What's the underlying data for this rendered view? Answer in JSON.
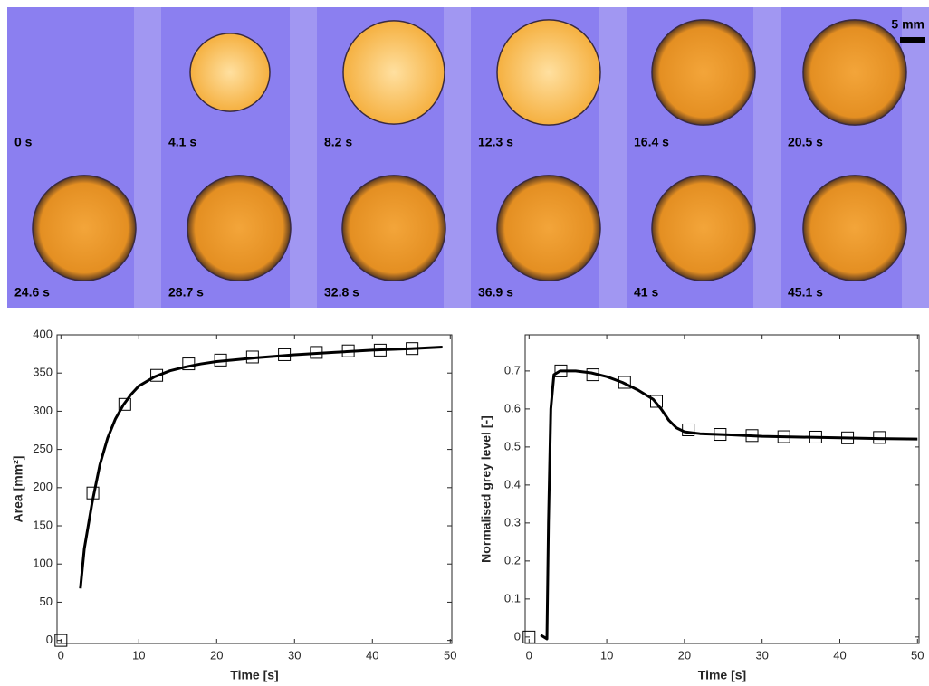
{
  "panels": {
    "labels": [
      "0 s",
      "4.1 s",
      "8.2 s",
      "12.3 s",
      "16.4 s",
      "20.5 s",
      "24.6 s",
      "28.7 s",
      "32.8 s",
      "36.9 s",
      "41 s",
      "45.1 s"
    ],
    "scale_bar": "5 mm"
  },
  "chart_data": [
    {
      "type": "line",
      "xlabel": "Time [s]",
      "ylabel": "Area [mm²]",
      "xlim": [
        -0.5,
        50.2
      ],
      "xticks": [
        0,
        10,
        20,
        30,
        40,
        50
      ],
      "ylim": [
        -4,
        400
      ],
      "yticks": [
        0,
        50,
        100,
        150,
        200,
        250,
        300,
        350,
        400
      ],
      "series": [
        {
          "color": "#000000",
          "marker": "none",
          "x": [
            2.5,
            3,
            4,
            5,
            6,
            7,
            8,
            9,
            10,
            12,
            14,
            16,
            18,
            20,
            25,
            30,
            35,
            40,
            45,
            49
          ],
          "values": [
            68,
            120,
            180,
            230,
            265,
            290,
            308,
            322,
            333,
            345,
            353,
            358,
            362,
            365,
            370,
            374,
            377,
            380,
            382,
            384
          ]
        },
        {
          "color": "#000000",
          "marker": "square",
          "x": [
            0,
            4.1,
            8.2,
            12.3,
            16.4,
            20.5,
            24.6,
            28.7,
            32.8,
            36.9,
            41,
            45.1
          ],
          "values": [
            0,
            193,
            309,
            347,
            362,
            367,
            371,
            374,
            377,
            379,
            380,
            382
          ]
        }
      ]
    },
    {
      "type": "line",
      "xlabel": "Time [s]",
      "ylabel": "Normalised grey level [-]",
      "xlim": [
        -0.5,
        50.2
      ],
      "xticks": [
        0,
        10,
        20,
        30,
        40,
        50
      ],
      "ylim": [
        -0.017,
        0.795
      ],
      "yticks": [
        0,
        0.1,
        0.2,
        0.3,
        0.4,
        0.5,
        0.6,
        0.7
      ],
      "series": [
        {
          "color": "#000000",
          "marker": "none",
          "x": [
            1.5,
            2.3,
            2.5,
            2.8,
            3.2,
            4,
            6,
            8,
            10,
            12,
            14,
            16,
            17,
            18,
            19,
            20,
            22,
            26,
            30,
            35,
            40,
            45,
            50
          ],
          "values": [
            0.005,
            -0.005,
            0.3,
            0.6,
            0.69,
            0.7,
            0.7,
            0.695,
            0.685,
            0.67,
            0.65,
            0.625,
            0.6,
            0.57,
            0.55,
            0.54,
            0.535,
            0.532,
            0.528,
            0.526,
            0.524,
            0.522,
            0.521
          ]
        },
        {
          "color": "#000000",
          "marker": "square",
          "x": [
            0,
            4.1,
            8.2,
            12.3,
            16.4,
            20.5,
            24.6,
            28.7,
            32.8,
            36.9,
            41,
            45.1
          ],
          "values": [
            0,
            0.7,
            0.69,
            0.67,
            0.62,
            0.545,
            0.533,
            0.53,
            0.527,
            0.526,
            0.524,
            0.525
          ]
        }
      ]
    }
  ]
}
